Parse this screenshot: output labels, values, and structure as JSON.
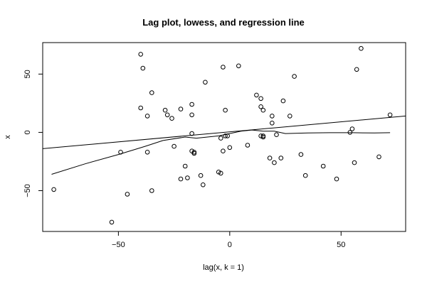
{
  "chart_data": {
    "type": "scatter",
    "title": "Lag plot, lowess, and regression line",
    "xlabel": "lag(x, k = 1)",
    "ylabel": "x",
    "xlim": [
      -84,
      79
    ],
    "ylim": [
      -85,
      77
    ],
    "xticks": [
      -50,
      0,
      50
    ],
    "xtick_labels": [
      "−50",
      "0",
      "50"
    ],
    "yticks": [
      -50,
      0,
      50
    ],
    "ytick_labels": [
      "−50",
      "0",
      "50"
    ],
    "grid": false,
    "points": [
      [
        -79,
        -49
      ],
      [
        -53,
        -77
      ],
      [
        -49,
        -17
      ],
      [
        -46,
        -53
      ],
      [
        -40,
        67
      ],
      [
        -39,
        55
      ],
      [
        -40,
        21
      ],
      [
        -37,
        14
      ],
      [
        -37,
        -17
      ],
      [
        -35,
        34
      ],
      [
        -35,
        -50
      ],
      [
        -29,
        19
      ],
      [
        -28,
        15
      ],
      [
        -26,
        12
      ],
      [
        -25,
        -12
      ],
      [
        -22,
        20
      ],
      [
        -22,
        -40
      ],
      [
        -20,
        -29
      ],
      [
        -19,
        -39
      ],
      [
        -17,
        24
      ],
      [
        -17,
        15
      ],
      [
        -17,
        -1
      ],
      [
        -17,
        -16
      ],
      [
        -16,
        -17
      ],
      [
        -16,
        -18
      ],
      [
        -13,
        -37
      ],
      [
        -12,
        -45
      ],
      [
        -11,
        43
      ],
      [
        -5,
        -34
      ],
      [
        -4,
        -35
      ],
      [
        -4,
        -5
      ],
      [
        -3,
        -16
      ],
      [
        -3,
        56
      ],
      [
        -2,
        19
      ],
      [
        -2,
        -3
      ],
      [
        -1,
        -3
      ],
      [
        0,
        -13
      ],
      [
        4,
        57
      ],
      [
        8,
        -11
      ],
      [
        12,
        32
      ],
      [
        14,
        29
      ],
      [
        14,
        22
      ],
      [
        14,
        -3
      ],
      [
        15,
        -4
      ],
      [
        15,
        19
      ],
      [
        15,
        -3
      ],
      [
        18,
        -22
      ],
      [
        19,
        14
      ],
      [
        19,
        8
      ],
      [
        20,
        -26
      ],
      [
        21,
        -2
      ],
      [
        23,
        -22
      ],
      [
        24,
        27
      ],
      [
        27,
        14
      ],
      [
        29,
        48
      ],
      [
        32,
        -19
      ],
      [
        34,
        -37
      ],
      [
        42,
        -29
      ],
      [
        48,
        -40
      ],
      [
        54,
        0
      ],
      [
        55,
        3
      ],
      [
        57,
        54
      ],
      [
        56,
        -26
      ],
      [
        59,
        72
      ],
      [
        67,
        -21
      ],
      [
        72,
        15
      ]
    ],
    "series": [
      {
        "type": "line",
        "points": [
          [
            -80,
            -36
          ],
          [
            -65,
            -27
          ],
          [
            -50,
            -19
          ],
          [
            -38,
            -12
          ],
          [
            -30,
            -7
          ],
          [
            -20,
            -4
          ],
          [
            -15,
            -5
          ],
          [
            -10,
            -4
          ],
          [
            -5,
            -3
          ],
          [
            0,
            -1
          ],
          [
            5,
            1
          ],
          [
            10,
            2
          ],
          [
            15,
            1
          ],
          [
            20,
            1
          ],
          [
            25,
            -1
          ],
          [
            35,
            -0.5
          ],
          [
            45,
            -0.3
          ],
          [
            55,
            -0.3
          ],
          [
            65,
            -0.5
          ],
          [
            72,
            -0.3
          ]
        ]
      },
      {
        "type": "line",
        "points": [
          [
            -84,
            -14
          ],
          [
            79,
            14
          ]
        ]
      }
    ]
  }
}
